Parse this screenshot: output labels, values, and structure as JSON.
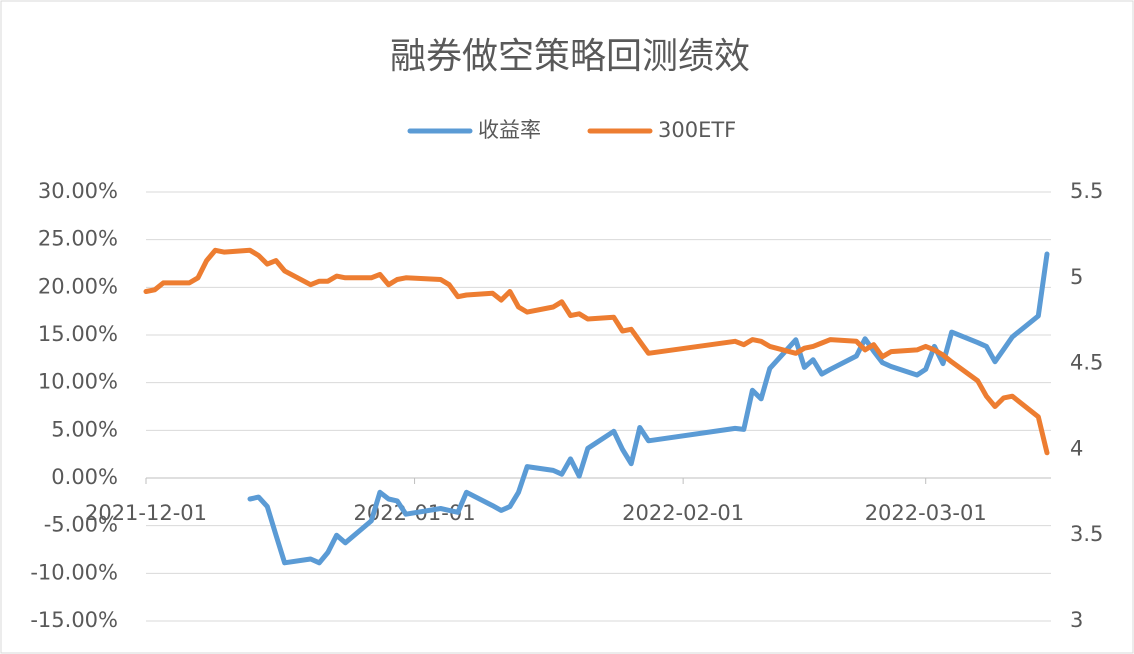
{
  "chart_data": {
    "type": "line",
    "title": "融券做空策略回测绩效",
    "x": [
      "2021-12-01",
      "2021-12-02",
      "2021-12-03",
      "2021-12-06",
      "2021-12-07",
      "2021-12-08",
      "2021-12-09",
      "2021-12-10",
      "2021-12-13",
      "2021-12-14",
      "2021-12-15",
      "2021-12-16",
      "2021-12-17",
      "2021-12-20",
      "2021-12-21",
      "2021-12-22",
      "2021-12-23",
      "2021-12-24",
      "2021-12-27",
      "2021-12-28",
      "2021-12-29",
      "2021-12-30",
      "2021-12-31",
      "2022-01-04",
      "2022-01-05",
      "2022-01-06",
      "2022-01-07",
      "2022-01-10",
      "2022-01-11",
      "2022-01-12",
      "2022-01-13",
      "2022-01-14",
      "2022-01-17",
      "2022-01-18",
      "2022-01-19",
      "2022-01-20",
      "2022-01-21",
      "2022-01-24",
      "2022-01-25",
      "2022-01-26",
      "2022-01-27",
      "2022-01-28",
      "2022-02-07",
      "2022-02-08",
      "2022-02-09",
      "2022-02-10",
      "2022-02-11",
      "2022-02-14",
      "2022-02-15",
      "2022-02-16",
      "2022-02-17",
      "2022-02-18",
      "2022-02-21",
      "2022-02-22",
      "2022-02-23",
      "2022-02-24",
      "2022-02-25",
      "2022-02-28",
      "2022-03-01",
      "2022-03-02",
      "2022-03-03",
      "2022-03-04",
      "2022-03-07",
      "2022-03-08",
      "2022-03-09",
      "2022-03-10",
      "2022-03-11",
      "2022-03-14",
      "2022-03-15"
    ],
    "series": [
      {
        "name": "收益率",
        "color": "#5b9bd5",
        "axis": "y",
        "values": [
          null,
          null,
          null,
          null,
          null,
          null,
          null,
          null,
          -2.2,
          -2.0,
          -3.0,
          -6.0,
          -8.9,
          -8.5,
          -8.9,
          -7.8,
          -6.0,
          -6.8,
          -4.5,
          -1.5,
          -2.2,
          -2.4,
          -3.8,
          -3.2,
          -3.4,
          -3.6,
          -1.5,
          -2.9,
          -3.4,
          -3.0,
          -1.5,
          1.2,
          0.8,
          0.4,
          2.0,
          0.2,
          3.1,
          4.9,
          3.0,
          1.5,
          5.3,
          3.9,
          5.2,
          5.1,
          9.2,
          8.3,
          11.5,
          14.5,
          11.6,
          12.4,
          10.9,
          11.4,
          12.8,
          14.6,
          13.3,
          12.1,
          11.7,
          10.8,
          11.4,
          13.8,
          12.0,
          15.3,
          14.2,
          13.8,
          12.2,
          13.5,
          14.8,
          17.0,
          23.5
        ]
      },
      {
        "name": "300ETF",
        "color": "#ed7d31",
        "axis": "y2",
        "values": [
          4.92,
          4.93,
          4.97,
          4.97,
          5.0,
          5.1,
          5.16,
          5.15,
          5.16,
          5.13,
          5.08,
          5.1,
          5.04,
          4.96,
          4.98,
          4.98,
          5.01,
          5.0,
          5.0,
          5.02,
          4.96,
          4.99,
          5.0,
          4.99,
          4.96,
          4.89,
          4.9,
          4.91,
          4.87,
          4.92,
          4.83,
          4.8,
          4.83,
          4.86,
          4.78,
          4.79,
          4.76,
          4.77,
          4.69,
          4.7,
          4.63,
          4.56,
          4.63,
          4.61,
          4.64,
          4.63,
          4.6,
          4.56,
          4.59,
          4.6,
          4.62,
          4.64,
          4.63,
          4.58,
          4.61,
          4.54,
          4.57,
          4.58,
          4.6,
          4.58,
          4.55,
          4.51,
          4.4,
          4.31,
          4.25,
          4.3,
          4.31,
          4.19,
          3.98
        ]
      }
    ],
    "xlim": [
      "2021-12-01",
      "2022-03-15"
    ],
    "xticks": [
      "2021-12-01",
      "2022-01-01",
      "2022-02-01",
      "2022-03-01"
    ],
    "ylim": [
      -15,
      30
    ],
    "yticks": [
      {
        "value": -15,
        "label": "-15.00%"
      },
      {
        "value": -10,
        "label": "-10.00%"
      },
      {
        "value": -5,
        "label": "-5.00%"
      },
      {
        "value": 0,
        "label": "0.00%"
      },
      {
        "value": 5,
        "label": "5.00%"
      },
      {
        "value": 10,
        "label": "10.00%"
      },
      {
        "value": 15,
        "label": "15.00%"
      },
      {
        "value": 20,
        "label": "20.00%"
      },
      {
        "value": 25,
        "label": "25.00%"
      },
      {
        "value": 30,
        "label": "30.00%"
      }
    ],
    "y2lim": [
      3,
      5.5
    ],
    "y2ticks": [
      3,
      3.5,
      4,
      4.5,
      5,
      5.5
    ],
    "grid": true,
    "legend": "top"
  }
}
